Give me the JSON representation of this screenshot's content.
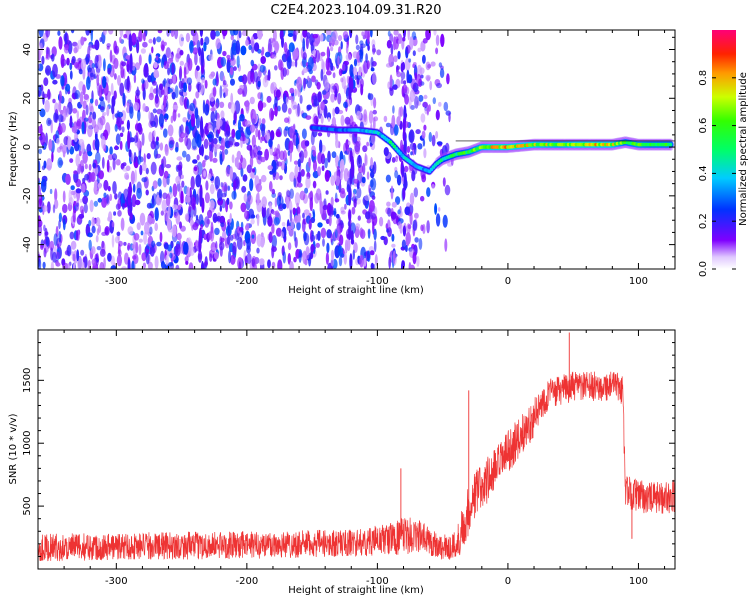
{
  "title": "C2E4.2023.104.09.31.R20",
  "chart_data": [
    {
      "type": "heatmap",
      "xlabel": "Height of straight line (km)",
      "ylabel": "Frequency (Hz)",
      "xlim": [
        -360,
        128
      ],
      "ylim": [
        -50,
        48
      ],
      "xticks": [
        -300,
        -200,
        -100,
        0,
        100
      ],
      "yticks": [
        -40,
        -20,
        0,
        20,
        40
      ],
      "colorbar": {
        "label": "Normalized spectral amplitude",
        "range": [
          0.0,
          1.0
        ],
        "ticks": [
          0.0,
          0.2,
          0.4,
          0.6,
          0.8
        ],
        "tick_labels": [
          "0.0",
          "0.2",
          "0.4",
          "0.6",
          "0.8"
        ],
        "colormap": "gist_rainbow (white to violet to blue to cyan to green to yellow to orange to red to magenta)"
      },
      "features": {
        "noise_region_height_km": [
          -360,
          -52
        ],
        "noise_gap_height_km": [
          -102,
          -92
        ],
        "signal_track": {
          "height_km": [
            -150,
            -130,
            -115,
            -100,
            -90,
            -80,
            -70,
            -60,
            -55,
            -50,
            -40,
            -30,
            -20,
            -10,
            0,
            20,
            40,
            60,
            80,
            90,
            100,
            110,
            125
          ],
          "frequency_hz": [
            8,
            7,
            7,
            6,
            2,
            -4,
            -8,
            -10,
            -7,
            -5,
            -3,
            -2,
            0,
            0,
            0,
            1,
            1,
            1,
            1,
            2,
            1,
            1,
            1
          ],
          "amplitude": [
            0.3,
            0.3,
            0.35,
            0.4,
            0.5,
            0.45,
            0.35,
            0.4,
            0.45,
            0.5,
            0.55,
            0.6,
            0.7,
            0.8,
            0.8,
            0.75,
            0.7,
            0.8,
            0.75,
            0.6,
            0.65,
            0.6,
            0.6
          ]
        }
      }
    },
    {
      "type": "line",
      "xlabel": "Height of straight line (km)",
      "ylabel": "SNR (10 * v/v)",
      "xlim": [
        -360,
        128
      ],
      "ylim": [
        0,
        1900
      ],
      "xticks": [
        -300,
        -200,
        -100,
        0,
        100
      ],
      "yticks": [
        500,
        1000,
        1500
      ],
      "series": [
        {
          "color": "#ee3333",
          "x": [
            -360,
            -300,
            -250,
            -200,
            -150,
            -110,
            -100,
            -90,
            -80,
            -70,
            -60,
            -50,
            -40,
            -35,
            -30,
            -25,
            -20,
            -10,
            0,
            10,
            20,
            25,
            30,
            40,
            50,
            60,
            70,
            80,
            85,
            88,
            90,
            100,
            110,
            120,
            128
          ],
          "mean": [
            170,
            180,
            185,
            190,
            200,
            210,
            230,
            240,
            260,
            270,
            220,
            170,
            180,
            320,
            470,
            600,
            650,
            780,
            930,
            1060,
            1200,
            1300,
            1380,
            1420,
            1450,
            1450,
            1450,
            1460,
            1440,
            1420,
            620,
            580,
            560,
            570,
            580
          ],
          "spread": [
            110,
            110,
            110,
            110,
            110,
            110,
            120,
            130,
            150,
            140,
            120,
            100,
            130,
            180,
            200,
            200,
            200,
            180,
            170,
            160,
            150,
            150,
            130,
            120,
            120,
            120,
            120,
            120,
            120,
            120,
            130,
            130,
            130,
            130,
            130
          ],
          "spikes": [
            {
              "x": -82,
              "y": 800
            },
            {
              "x": -30,
              "y": 1420
            },
            {
              "x": 47,
              "y": 1880
            },
            {
              "x": 95,
              "y": 240
            }
          ]
        }
      ]
    }
  ]
}
